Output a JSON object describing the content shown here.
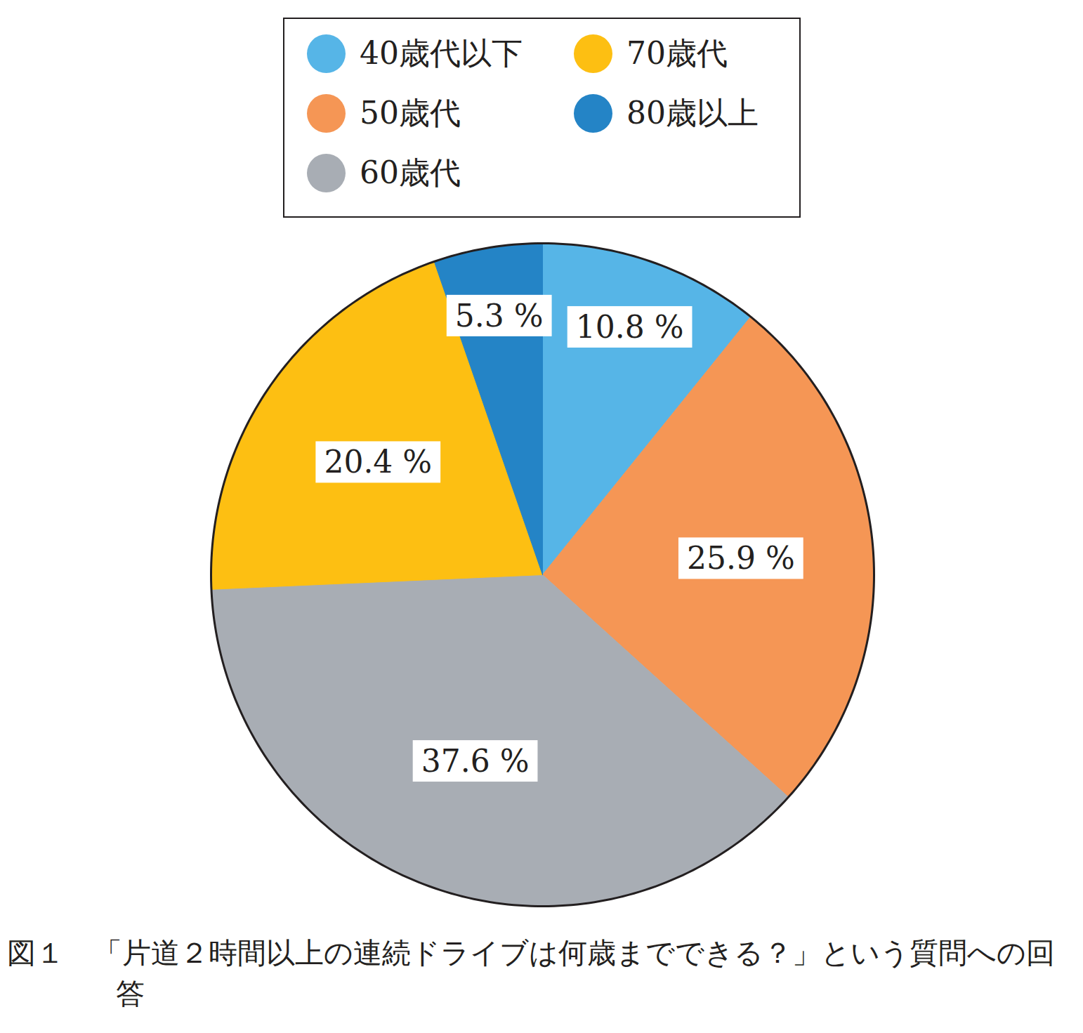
{
  "chart_data": {
    "type": "pie",
    "title": "図１　「片道２時間以上の連続ドライブは何歳までできる？」という質問への回答",
    "categories": [
      "40歳代以下",
      "50歳代",
      "60歳代",
      "70歳代",
      "80歳以上"
    ],
    "values": [
      10.8,
      25.9,
      37.6,
      20.4,
      5.3
    ],
    "value_labels": [
      "10.8 %",
      "25.9 %",
      "37.6 %",
      "20.4 %",
      "5.3 %"
    ],
    "colors": [
      "#56b5e7",
      "#f59655",
      "#a8adb4",
      "#fdbf12",
      "#2484c6"
    ],
    "data_labels": true,
    "legend": "top"
  }
}
